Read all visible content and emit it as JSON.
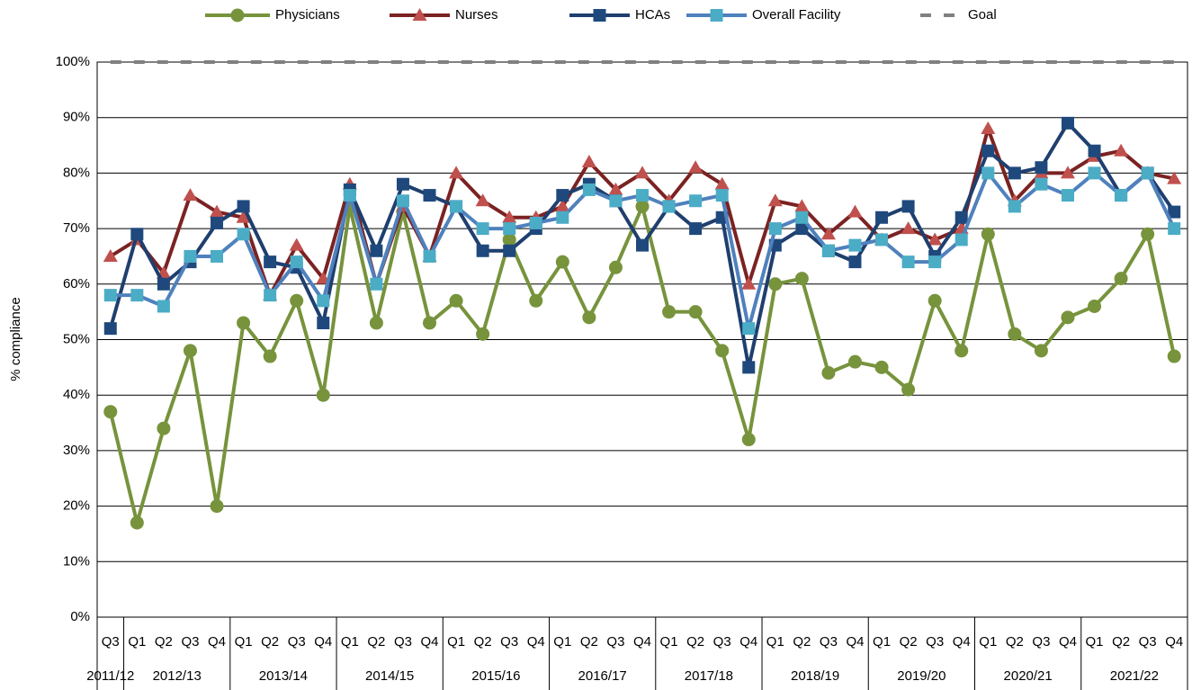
{
  "chart_data": {
    "type": "line",
    "y_label": "% compliance",
    "categories": [
      "Q3",
      "Q1",
      "Q2",
      "Q3",
      "Q4",
      "Q1",
      "Q2",
      "Q3",
      "Q4",
      "Q1",
      "Q2",
      "Q3",
      "Q4",
      "Q1",
      "Q2",
      "Q3",
      "Q4",
      "Q1",
      "Q2",
      "Q3",
      "Q4",
      "Q1",
      "Q2",
      "Q3",
      "Q4",
      "Q1",
      "Q2",
      "Q3",
      "Q4",
      "Q1",
      "Q2",
      "Q3",
      "Q4",
      "Q1",
      "Q2",
      "Q3",
      "Q4",
      "Q1",
      "Q2",
      "Q3",
      "Q4"
    ],
    "groups": [
      "2011/12",
      "2012/13",
      "2013/14",
      "2014/15",
      "2015/16",
      "2016/17",
      "2017/18",
      "2018/19",
      "2019/20",
      "2020/21",
      "2021/22"
    ],
    "series": [
      {
        "name": "Physicians",
        "color": "#77933c",
        "marker": "circle",
        "values": [
          37,
          17,
          34,
          48,
          20,
          53,
          47,
          57,
          40,
          74,
          53,
          73,
          53,
          57,
          51,
          68,
          57,
          64,
          54,
          63,
          74,
          55,
          55,
          48,
          32,
          60,
          61,
          44,
          46,
          45,
          41,
          57,
          48,
          69,
          51,
          48,
          54,
          56,
          61,
          69,
          47
        ]
      },
      {
        "name": "Nurses",
        "color": "#7b2222",
        "marker_color": "#c0504d",
        "marker": "triangle",
        "values": [
          65,
          68,
          62,
          76,
          73,
          72,
          58,
          67,
          61,
          78,
          60,
          74,
          65,
          80,
          75,
          72,
          72,
          74,
          82,
          77,
          80,
          75,
          81,
          78,
          60,
          75,
          74,
          69,
          73,
          68,
          70,
          68,
          70,
          88,
          75,
          80,
          80,
          83,
          84,
          80,
          79
        ]
      },
      {
        "name": "HCAs",
        "color": "#1f3f6e",
        "marker_color": "#1f497d",
        "marker": "square",
        "values": [
          52,
          69,
          60,
          64,
          71,
          74,
          64,
          63,
          53,
          77,
          66,
          78,
          76,
          74,
          66,
          66,
          70,
          76,
          78,
          75,
          67,
          74,
          70,
          72,
          45,
          67,
          70,
          66,
          64,
          72,
          74,
          65,
          72,
          84,
          80,
          81,
          89,
          84,
          76,
          80,
          73
        ]
      },
      {
        "name": "Overall Facility",
        "color": "#4f81bd",
        "marker_color": "#4bacc6",
        "marker": "square",
        "values": [
          58,
          58,
          56,
          65,
          65,
          69,
          58,
          64,
          57,
          76,
          60,
          75,
          65,
          74,
          70,
          70,
          71,
          72,
          77,
          75,
          76,
          74,
          75,
          76,
          52,
          70,
          72,
          66,
          67,
          68,
          64,
          64,
          68,
          80,
          74,
          78,
          76,
          80,
          76,
          80,
          70
        ]
      },
      {
        "name": "Goal",
        "color": "#808080",
        "dashed": true,
        "values": [
          100,
          100,
          100,
          100,
          100,
          100,
          100,
          100,
          100,
          100,
          100,
          100,
          100,
          100,
          100,
          100,
          100,
          100,
          100,
          100,
          100,
          100,
          100,
          100,
          100,
          100,
          100,
          100,
          100,
          100,
          100,
          100,
          100,
          100,
          100,
          100,
          100,
          100,
          100,
          100,
          100
        ]
      }
    ],
    "ylim": [
      0,
      100
    ],
    "yticks": [
      {
        "value": 0,
        "label": "0%"
      },
      {
        "value": 10,
        "label": "10%"
      },
      {
        "value": 20,
        "label": "20%"
      },
      {
        "value": 30,
        "label": "30%"
      },
      {
        "value": 40,
        "label": "40%"
      },
      {
        "value": 50,
        "label": "50%"
      },
      {
        "value": 60,
        "label": "60%"
      },
      {
        "value": 70,
        "label": "70%"
      },
      {
        "value": 80,
        "label": "80%"
      },
      {
        "value": 90,
        "label": "90%"
      },
      {
        "value": 100,
        "label": "100%"
      }
    ],
    "grid": true,
    "legend": "top"
  }
}
